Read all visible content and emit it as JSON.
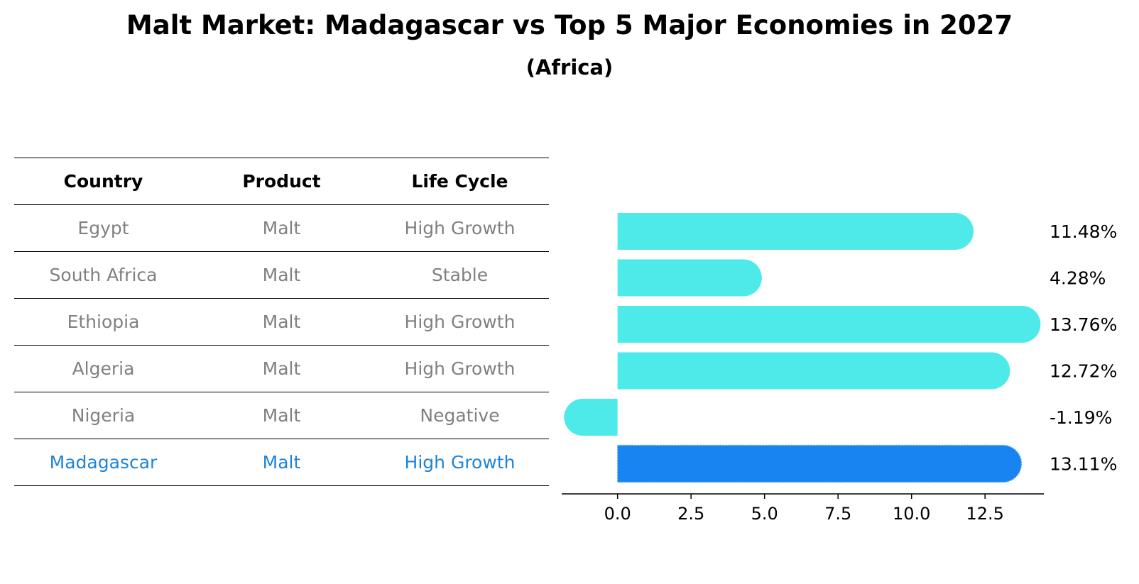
{
  "title": "Malt Market: Madagascar vs Top 5 Major Economies in 2027",
  "subtitle": "(Africa)",
  "table": {
    "headers": [
      "Country",
      "Product",
      "Life Cycle"
    ],
    "rows": [
      [
        "Egypt",
        "Malt",
        "High Growth"
      ],
      [
        "South Africa",
        "Malt",
        "Stable"
      ],
      [
        "Ethiopia",
        "Malt",
        "High Growth"
      ],
      [
        "Algeria",
        "Malt",
        "High Growth"
      ],
      [
        "Nigeria",
        "Malt",
        "Negative"
      ],
      [
        "Madagascar",
        "Malt",
        "High Growth"
      ]
    ],
    "highlight_row": 5
  },
  "chart_data": {
    "type": "bar",
    "orientation": "horizontal",
    "categories": [
      "Egypt",
      "South Africa",
      "Ethiopia",
      "Algeria",
      "Nigeria",
      "Madagascar"
    ],
    "values": [
      11.48,
      4.28,
      13.76,
      12.72,
      -1.19,
      13.11
    ],
    "labels": [
      "11.48%",
      "4.28%",
      "13.76%",
      "12.72%",
      "-1.19%",
      "13.11%"
    ],
    "highlight": "Madagascar",
    "xlim": [
      -1.9,
      14.5
    ],
    "xticks": [
      0.0,
      2.5,
      5.0,
      7.5,
      10.0,
      12.5
    ],
    "xtick_labels": [
      "0.0",
      "2.5",
      "5.0",
      "7.5",
      "10.0",
      "12.5"
    ],
    "xlabel": "",
    "ylabel": "",
    "grid": false,
    "colors": {
      "default": "#4eeaea",
      "highlight": "#1784f2"
    }
  }
}
